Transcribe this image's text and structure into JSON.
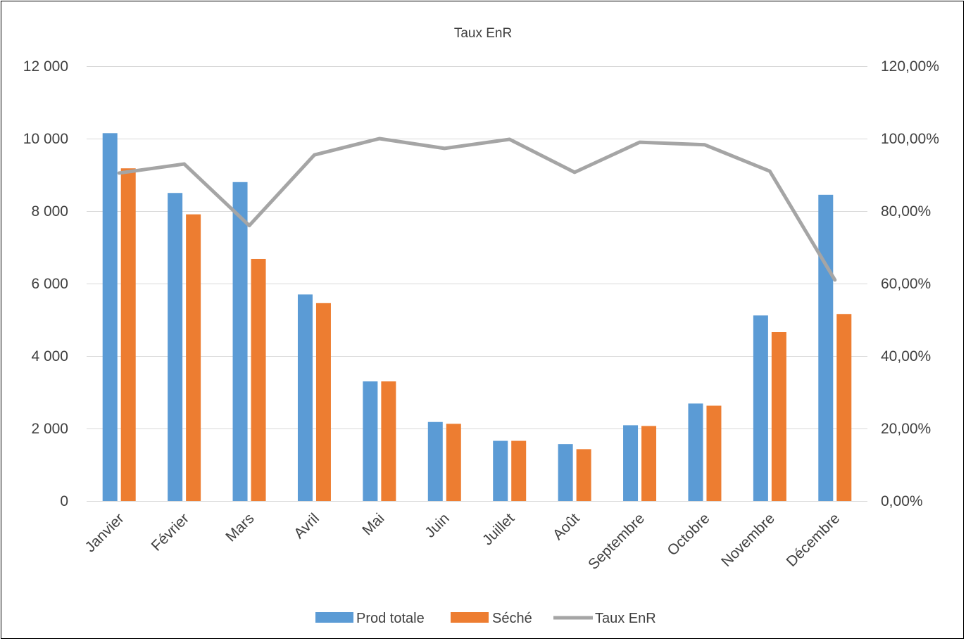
{
  "chart_data": {
    "type": "bar",
    "title": "Taux EnR",
    "categories": [
      "Janvier",
      "Février",
      "Mars",
      "Avril",
      "Mai",
      "Juin",
      "Juillet",
      "Août",
      "Septembre",
      "Octobre",
      "Novembre",
      "Décembre"
    ],
    "series": [
      {
        "name": "Prod totale",
        "type": "bar",
        "axis": "left",
        "color": "#5b9bd5",
        "values": [
          10150,
          8500,
          8800,
          5700,
          3300,
          2180,
          1660,
          1570,
          2090,
          2690,
          5120,
          8450
        ]
      },
      {
        "name": "Séché",
        "type": "bar",
        "axis": "left",
        "color": "#ed7d31",
        "values": [
          9180,
          7910,
          6680,
          5460,
          3300,
          2130,
          1660,
          1430,
          2070,
          2630,
          4660,
          5160
        ]
      },
      {
        "name": "Taux EnR",
        "type": "line",
        "axis": "right",
        "color": "#a5a5a5",
        "values": [
          0.905,
          0.93,
          0.76,
          0.955,
          1.0,
          0.973,
          0.998,
          0.907,
          0.99,
          0.983,
          0.91,
          0.61
        ]
      }
    ],
    "y_left": {
      "min": 0,
      "max": 12000,
      "step": 2000,
      "tick_labels": [
        "0",
        "2 000",
        "4 000",
        "6 000",
        "8 000",
        "10 000",
        "12 000"
      ]
    },
    "y_right": {
      "min": 0,
      "max": 1.2,
      "step": 0.2,
      "tick_labels": [
        "0,00%",
        "20,00%",
        "40,00%",
        "60,00%",
        "80,00%",
        "100,00%",
        "120,00%"
      ]
    },
    "grid": true,
    "legend_position": "bottom"
  }
}
